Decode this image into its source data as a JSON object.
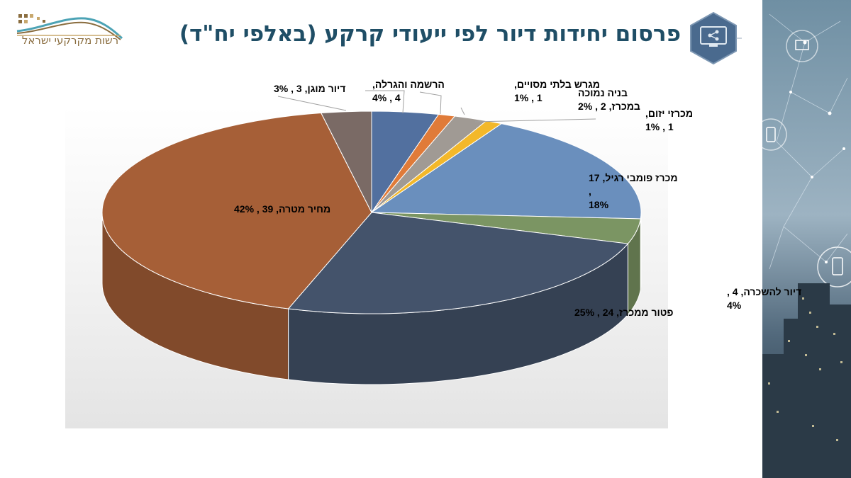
{
  "header": {
    "title": "פרסום יחידות דיור לפי ייעודי קרקע (באלפי יח\"ד)",
    "logo_text": "רשות מקרקעי ישראל",
    "share_icon": "share-icon"
  },
  "colors": {
    "title": "#1f4e66",
    "logo_text": "#8a6d3f"
  },
  "chart_data": {
    "type": "pie",
    "three_d": true,
    "title": "פרסום יחידות דיור לפי ייעודי קרקע (באלפי יח\"ד)",
    "unit": "אלפי יח\"ד",
    "legend": "none",
    "slices": [
      {
        "name": "הרשמה והגרלה",
        "value": 4,
        "percent": 4,
        "color": "#52709f",
        "label_lines": [
          "הרשמה והגרלה,",
          "4 , 4%"
        ]
      },
      {
        "name": "מגרש בלתי מסויים",
        "value": 1,
        "percent": 1,
        "color": "#e07b39",
        "label_lines": [
          "מגרש בלתי מסויים,",
          "1 , 1%"
        ]
      },
      {
        "name": "בניה נמוכה במכרז",
        "value": 2,
        "percent": 2,
        "color": "#a09a94",
        "label_lines": [
          "בניה נמוכה",
          "במכרז,  2 , 2%"
        ]
      },
      {
        "name": "מכרזי יזום",
        "value": 1,
        "percent": 1,
        "color": "#f3b82a",
        "label_lines": [
          "מכרזי יזום,",
          "1 , 1%"
        ]
      },
      {
        "name": "מכרז פומבי רגיל",
        "value": 17,
        "percent": 18,
        "color": "#6a8fbd",
        "label_lines": [
          "מכרז פומבי רגיל,  17",
          ",",
          "18%"
        ]
      },
      {
        "name": "דיור להשכרה",
        "value": 4,
        "percent": 4,
        "color": "#7b9563",
        "label_lines": [
          "דיור להשכרה,  4 ,",
          "4%"
        ]
      },
      {
        "name": "פטור ממכרז",
        "value": 24,
        "percent": 25,
        "color": "#44536b",
        "label_lines": [
          "פטור ממכרז,  24 , 25%"
        ]
      },
      {
        "name": "מחיר מטרה",
        "value": 39,
        "percent": 42,
        "color": "#a65f37",
        "label_lines": [
          "מחיר מטרה,  39 , 42%"
        ]
      },
      {
        "name": "דיור מוגן",
        "value": 3,
        "percent": 3,
        "color": "#7a6a65",
        "label_lines": [
          "דיור מוגן,  3 , 3%"
        ]
      }
    ]
  }
}
